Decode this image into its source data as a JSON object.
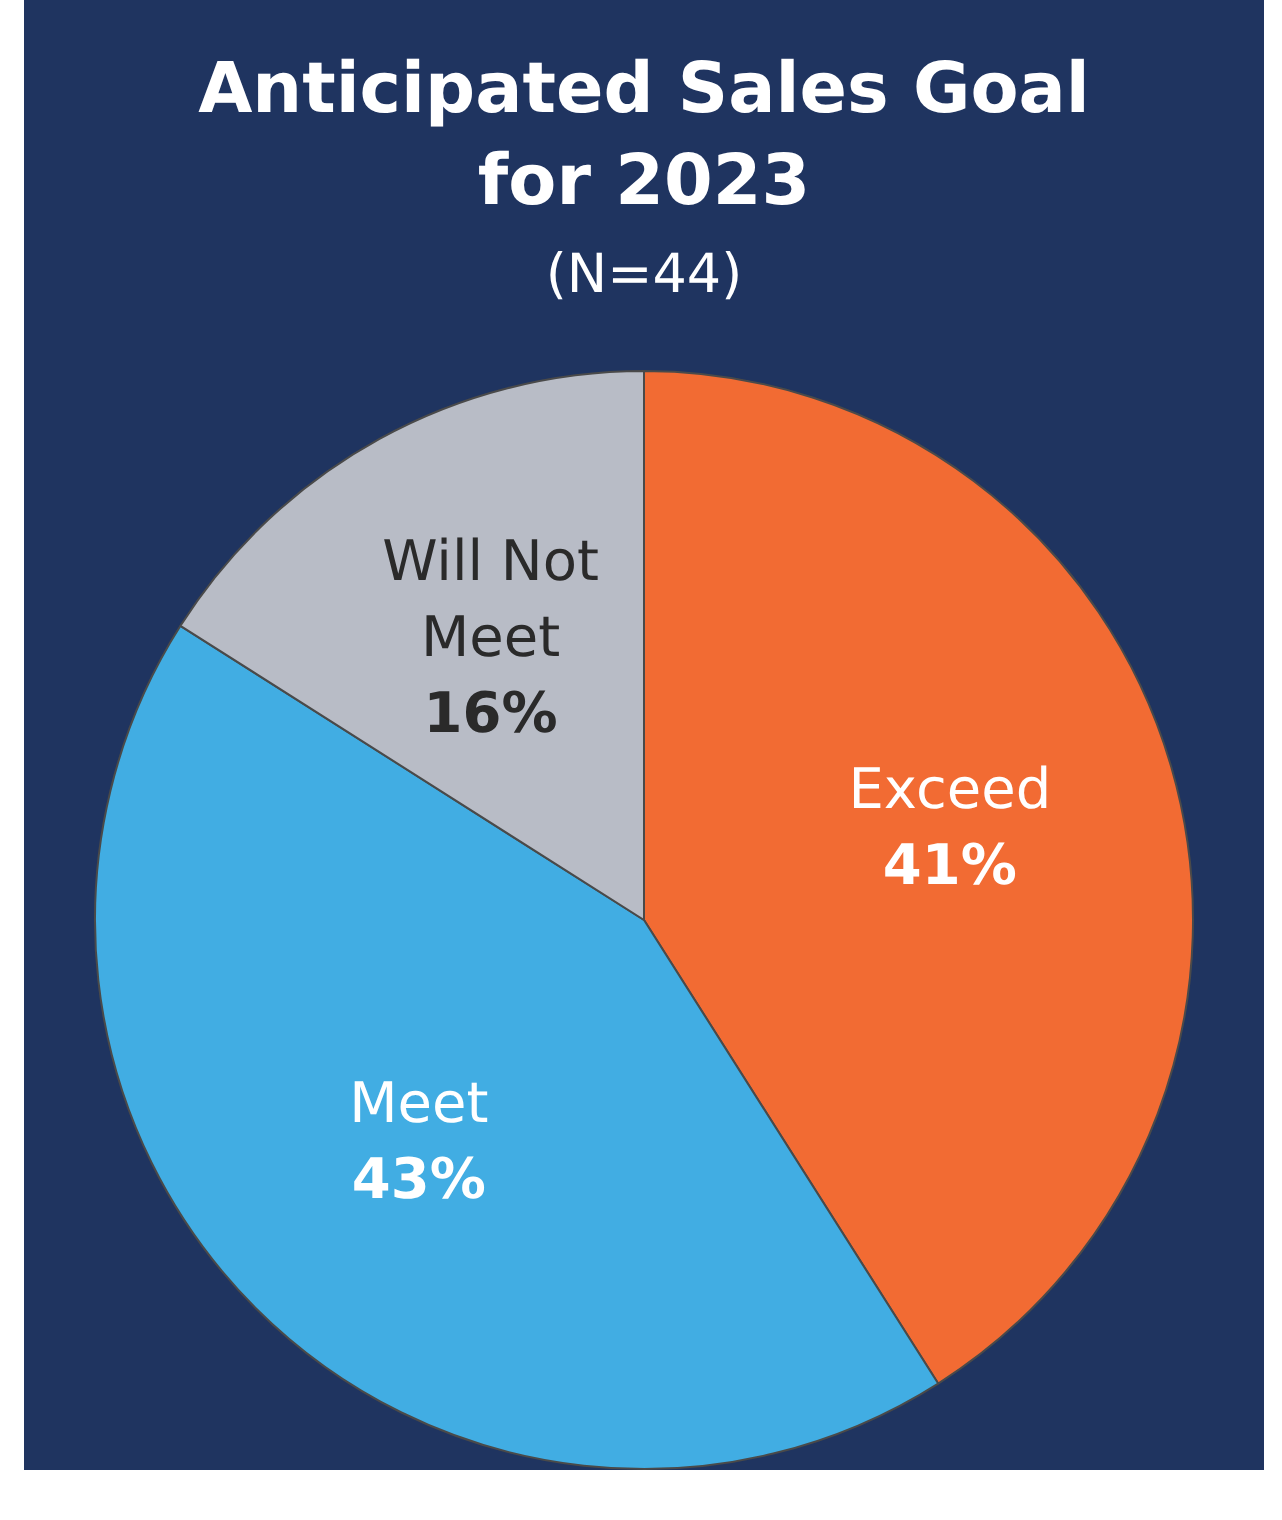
{
  "chart_data": {
    "type": "pie",
    "title": "Anticipated Sales Goal for 2023",
    "subtitle": "(N=44)",
    "categories": [
      "Exceed",
      "Meet",
      "Will Not Meet"
    ],
    "values": [
      41,
      43,
      16
    ],
    "value_labels": [
      "41%",
      "43%",
      "16%"
    ],
    "colors": [
      "#f26b33",
      "#41ade3",
      "#b8bcc6"
    ]
  }
}
